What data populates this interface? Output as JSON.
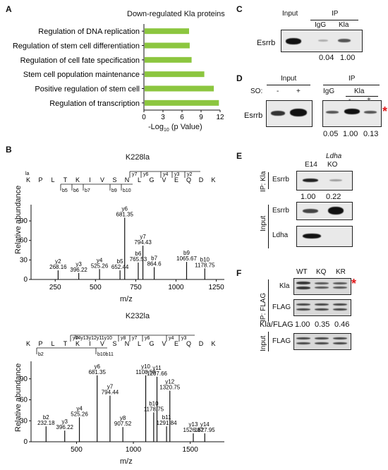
{
  "labels": {
    "A": "A",
    "B": "B",
    "C": "C",
    "D": "D",
    "E": "E",
    "F": "F"
  },
  "panel_a": {
    "chart_data": {
      "type": "bar",
      "title": "Down-regulated Kla proteins",
      "categories": [
        "Regulation of DNA replication",
        "Regulation of stem cell differentiation",
        "Regulation of cell fate specification",
        "Stem cell population maintenance",
        "Positive regulation of stem cell",
        "Regulation of transcription"
      ],
      "values": [
        7.0,
        7.1,
        7.4,
        9.4,
        10.9,
        11.7
      ],
      "xlim": [
        0,
        12
      ],
      "xticks": [
        "0",
        "3",
        "6",
        "9",
        "12"
      ],
      "xlabel_pre": "-Log",
      "xlabel_sub": "10",
      "xlabel_post": " (p Value)",
      "bar_color": "#8cc63f"
    }
  },
  "panel_b1": {
    "title": "K228la",
    "ylabel": "Relative abundance",
    "xlabel": "m/z",
    "yticks": [
      "0",
      "30",
      "60",
      "90"
    ],
    "xticks": [
      "250",
      "500",
      "750",
      "1000",
      "1250"
    ],
    "seq_letters": [
      "K",
      "P",
      "L",
      "T",
      "K",
      "I",
      "V",
      "S",
      "N",
      "L",
      "G",
      "V",
      "E",
      "Q",
      "D",
      "K"
    ],
    "seq_la": "la",
    "y_ions": [
      "y7",
      "y6",
      "y4",
      "y3",
      "y2"
    ],
    "b_ions": [
      "b5",
      "b6",
      "b7",
      "b9",
      "b10"
    ],
    "chart_data": {
      "type": "bar",
      "xlim": [
        100,
        1300
      ],
      "ylim": [
        0,
        115
      ],
      "peaks": [
        {
          "mz": 268.16,
          "y": 14,
          "label": "y2",
          "mz_label": "268.16"
        },
        {
          "mz": 396.22,
          "y": 10,
          "label": "y3",
          "mz_label": "396.22"
        },
        {
          "mz": 525.26,
          "y": 16,
          "label": "y4",
          "mz_label": "525.26"
        },
        {
          "mz": 652.44,
          "y": 14,
          "label": "b5",
          "mz_label": "652.44"
        },
        {
          "mz": 681.35,
          "y": 95,
          "label": "y6",
          "mz_label": "681.35"
        },
        {
          "mz": 765.53,
          "y": 26,
          "label": "b6",
          "mz_label": "765.53"
        },
        {
          "mz": 794.43,
          "y": 52,
          "label": "y7",
          "mz_label": "794.43"
        },
        {
          "mz": 864.6,
          "y": 19,
          "label": "b7",
          "mz_label": "864.6"
        },
        {
          "mz": 1065.67,
          "y": 27,
          "label": "b9",
          "mz_label": "1065.67"
        },
        {
          "mz": 1178.75,
          "y": 17,
          "label": "b10",
          "mz_label": "1178.75"
        }
      ]
    }
  },
  "panel_b2": {
    "title": "K232la",
    "ylabel": "Relative abundance",
    "xlabel": "m/z",
    "yticks": [
      "0",
      "30",
      "60",
      "90"
    ],
    "xticks": [
      "500",
      "1000",
      "1500"
    ],
    "seq_letters": [
      "K",
      "P",
      "L",
      "T",
      "K",
      "I",
      "V",
      "S",
      "N",
      "L",
      "G",
      "V",
      "E",
      "Q",
      "D",
      "K"
    ],
    "seq_la": "la",
    "y_ions": [
      "y14y13y12y11y10",
      "y8",
      "y7",
      "y6",
      "y4",
      "y3"
    ],
    "b_ions": [
      "b2",
      "b10b11"
    ],
    "chart_data": {
      "type": "bar",
      "xlim": [
        100,
        1800
      ],
      "ylim": [
        0,
        115
      ],
      "peaks": [
        {
          "mz": 232.18,
          "y": 22,
          "label": "b2",
          "mz_label": "232.18"
        },
        {
          "mz": 396.22,
          "y": 16,
          "label": "y3",
          "mz_label": "396.22"
        },
        {
          "mz": 525.26,
          "y": 35,
          "label": "y4",
          "mz_label": "525.26"
        },
        {
          "mz": 681.35,
          "y": 95,
          "label": "y6",
          "mz_label": "681.35"
        },
        {
          "mz": 794.44,
          "y": 66,
          "label": "y7",
          "mz_label": "794.44"
        },
        {
          "mz": 907.52,
          "y": 21,
          "label": "y8",
          "mz_label": "907.52"
        },
        {
          "mz": 1108.59,
          "y": 95,
          "label": "y10",
          "mz_label": "1108.59"
        },
        {
          "mz": 1178.75,
          "y": 42,
          "label": "b10",
          "mz_label": "1178.75"
        },
        {
          "mz": 1207.66,
          "y": 93,
          "label": "y11",
          "mz_label": "1207.66"
        },
        {
          "mz": 1291.84,
          "y": 22,
          "label": "b11",
          "mz_label": "1291.84"
        },
        {
          "mz": 1320.75,
          "y": 73,
          "label": "y12",
          "mz_label": "1320.75"
        },
        {
          "mz": 1526.87,
          "y": 12,
          "label": "y13",
          "mz_label": "1526.87"
        },
        {
          "mz": 1627.95,
          "y": 12,
          "label": "y14",
          "mz_label": "1627.95"
        }
      ]
    }
  },
  "panel_c": {
    "input": "Input",
    "ip": "IP",
    "igg": "IgG",
    "kla": "Kla",
    "protein": "Esrrb",
    "q1": "0.04",
    "q2": "1.00"
  },
  "panel_d": {
    "input": "Input",
    "ip": "IP",
    "so": "SO:",
    "minus": "-",
    "plus": "+",
    "igg": "IgG",
    "kla": "Kla",
    "protein": "Esrrb",
    "star": "*",
    "q1": "0.05",
    "q2": "1.00",
    "q3": "0.13"
  },
  "panel_e": {
    "e14": "E14",
    "ldha": "Ldha",
    "ko": "KO",
    "ip_kla": "IP: Kla",
    "input": "Input",
    "esrrb": "Esrrb",
    "ldha_band": "Ldha",
    "q1": "1.00",
    "q2": "0.22"
  },
  "panel_f": {
    "wt": "WT",
    "kq": "KQ",
    "kr": "KR",
    "ip_flag": "IP: FLAG",
    "input": "Input",
    "kla": "Kla",
    "flag": "FLAG",
    "flag2": "FLAG",
    "ratio_label": "Kla/FLAG",
    "r1": "1.00",
    "r2": "0.35",
    "r3": "0.46",
    "star": "*"
  }
}
